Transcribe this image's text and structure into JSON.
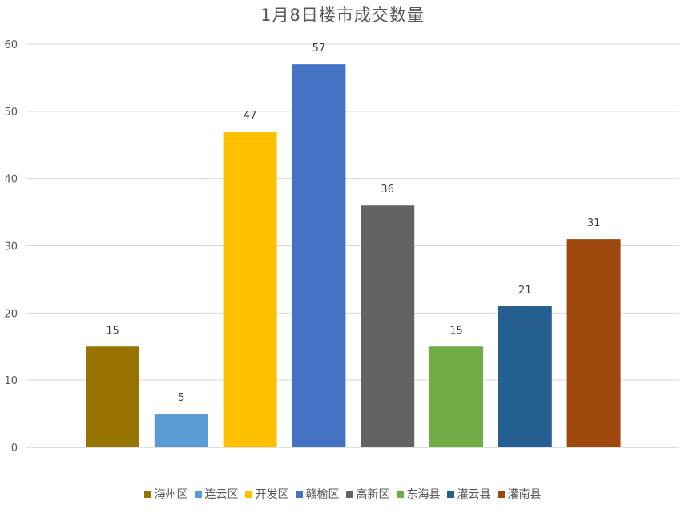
{
  "chart_data": {
    "type": "bar",
    "title": "1月8日楼市成交数量",
    "xlabel": "",
    "ylabel": "",
    "ylim": [
      0,
      60
    ],
    "yticks": [
      0,
      10,
      20,
      30,
      40,
      50,
      60
    ],
    "grid": true,
    "legend_position": "bottom",
    "categories": [
      "海州区",
      "连云区",
      "开发区",
      "赣榆区",
      "高新区",
      "东海县",
      "灌云县",
      "灌南县"
    ],
    "values": [
      15,
      5,
      47,
      57,
      36,
      15,
      21,
      31
    ],
    "colors": [
      "#997300",
      "#5B9BD5",
      "#FFC000",
      "#4472C4",
      "#636363",
      "#70AD47",
      "#255E91",
      "#9E480E"
    ]
  }
}
